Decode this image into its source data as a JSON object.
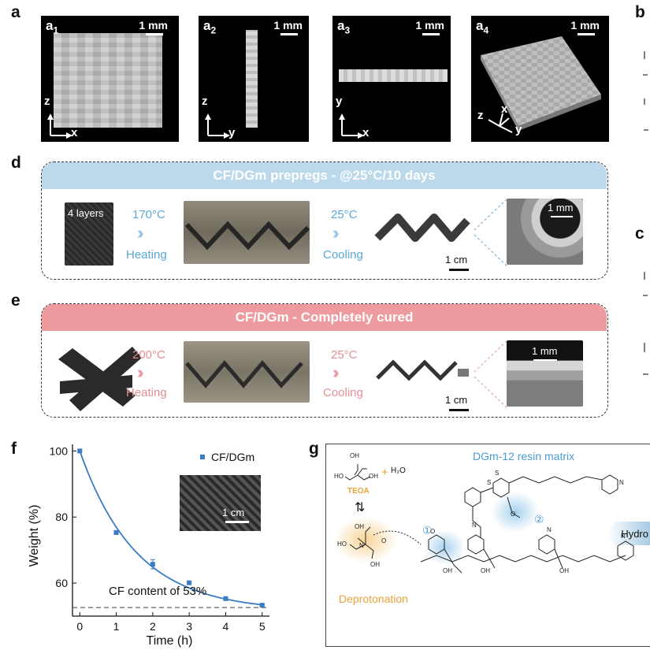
{
  "panels": {
    "a": "a",
    "b": "b",
    "c": "c",
    "d": "d",
    "e": "e",
    "f": "f",
    "g": "g"
  },
  "panel_a": {
    "images": [
      {
        "letter": "a",
        "sub": "1",
        "scale": "1 mm",
        "axis_v": "z",
        "axis_h": "x"
      },
      {
        "letter": "a",
        "sub": "2",
        "scale": "1 mm",
        "axis_v": "z",
        "axis_h": "y"
      },
      {
        "letter": "a",
        "sub": "3",
        "scale": "1 mm",
        "axis_v": "y",
        "axis_h": "x"
      },
      {
        "letter": "a",
        "sub": "4",
        "scale": "1 mm",
        "axis_z": "z",
        "axis_x": "x",
        "axis_y": "y"
      }
    ]
  },
  "panel_d": {
    "banner": "CF/DGm prepregs - @25°C/10 days",
    "banner_color": "#bcd9ec",
    "sample_label": "4 layers",
    "step1_temp": "170°C",
    "step1_label": "Heating",
    "step2_temp": "25°C",
    "step2_label": "Cooling",
    "scale_cm": "1 cm",
    "scale_mm": "1 mm",
    "accent_color": "#5aa7d6"
  },
  "panel_e": {
    "banner": "CF/DGm - Completely cured",
    "banner_color": "#ee9ba0",
    "step1_temp": "200°C",
    "step1_label": "Heating",
    "step2_temp": "25°C",
    "step2_label": "Cooling",
    "scale_cm": "1 cm",
    "scale_mm": "1 mm",
    "accent_color": "#e58e94"
  },
  "panel_f": {
    "inset_scale": "1 cm",
    "ref_line_label": "CF content of 53%"
  },
  "chart_data": {
    "type": "scatter",
    "title": "",
    "xlabel": "Time (h)",
    "ylabel": "Weight (%)",
    "xlim": [
      -0.2,
      5.2
    ],
    "ylim": [
      50,
      102
    ],
    "xticks": [
      0,
      1,
      2,
      3,
      4,
      5
    ],
    "yticks": [
      60,
      80,
      100
    ],
    "series": [
      {
        "name": "CF/DGm",
        "color": "#3a7cc4",
        "x": [
          0,
          1,
          2,
          3,
          4,
          5
        ],
        "y": [
          100,
          75.3,
          65.7,
          60.1,
          55.3,
          53.3
        ],
        "err": [
          0,
          0.5,
          1.4,
          0.5,
          0.4,
          0.3
        ]
      }
    ],
    "fit_curve": "exponential decay",
    "reference_line": {
      "y": 52.6,
      "style": "dashed",
      "label": "CF content of 53%"
    },
    "legend": "top-right",
    "grid": false
  },
  "panel_g": {
    "title": "DGm-12 resin matrix",
    "teoa_label": "TEOA",
    "water": "H₂O",
    "plus": "+",
    "equilibrium": "⇅",
    "deprotonation": "Deprotonation",
    "hydro_label": "Hydro",
    "step1": "①",
    "step2": "②",
    "title_color": "#4a9bd4",
    "deprot_color": "#e8a23a"
  }
}
